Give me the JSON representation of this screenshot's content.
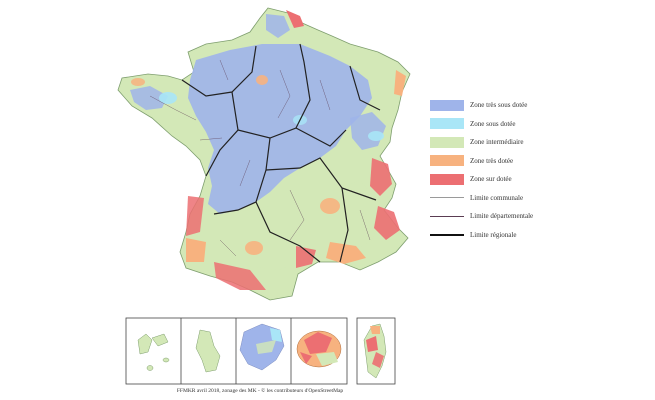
{
  "legend": {
    "items": [
      {
        "label": "Zone très sous dotée",
        "color": "#9fb4ea"
      },
      {
        "label": "Zone sous dotée",
        "color": "#a9e6f7"
      },
      {
        "label": "Zone intermédiaire",
        "color": "#d3e8b7"
      },
      {
        "label": "Zone très dotée",
        "color": "#f7b27f"
      },
      {
        "label": "Zone sur dotée",
        "color": "#ec6f72"
      }
    ],
    "lines": [
      {
        "label": "Limite communale",
        "kind": "communal"
      },
      {
        "label": "Limite départementale",
        "kind": "departmental"
      },
      {
        "label": "Limite régionale",
        "kind": "regional"
      }
    ]
  },
  "insets": [
    {
      "name": "guadeloupe",
      "icon": "guadeloupe-shape"
    },
    {
      "name": "martinique",
      "icon": "martinique-shape"
    },
    {
      "name": "guyane",
      "icon": "guyane-shape"
    },
    {
      "name": "reunion",
      "icon": "reunion-shape"
    },
    {
      "name": "corse",
      "icon": "corse-shape"
    }
  ],
  "caption": "FFMKR avril 2018, zonage des MK - © les contributeurs d'OpenStreetMap"
}
